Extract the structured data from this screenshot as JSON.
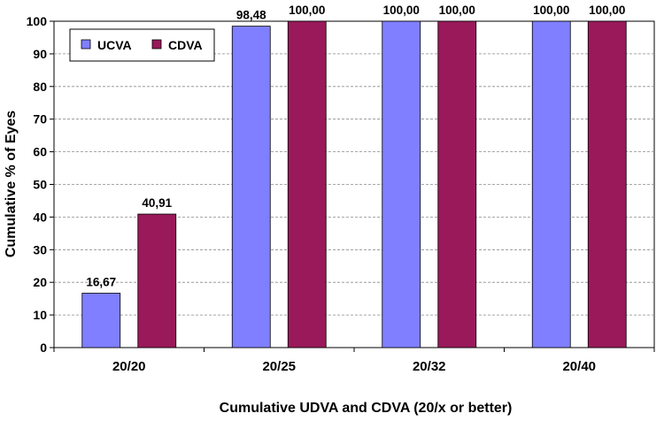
{
  "chart_data": {
    "type": "bar",
    "title": "",
    "xlabel": "Cumulative UDVA and CDVA (20/x or better)",
    "ylabel": "Cumulative % of Eyes",
    "ylim": [
      0,
      100
    ],
    "yticks": [
      0,
      10,
      20,
      30,
      40,
      50,
      60,
      70,
      80,
      90,
      100
    ],
    "grid": true,
    "legend_position": "top-left",
    "categories": [
      "20/20",
      "20/25",
      "20/32",
      "20/40"
    ],
    "series": [
      {
        "name": "UCVA",
        "color": "#7f7fff",
        "values": [
          16.67,
          98.48,
          100,
          100
        ],
        "labels": [
          "16,67",
          "98,48",
          "100,00",
          "100,00"
        ]
      },
      {
        "name": "CDVA",
        "color": "#99195a",
        "values": [
          40.91,
          100,
          100,
          100
        ],
        "labels": [
          "40,91",
          "100,00",
          "100,00",
          "100,00"
        ]
      }
    ]
  }
}
